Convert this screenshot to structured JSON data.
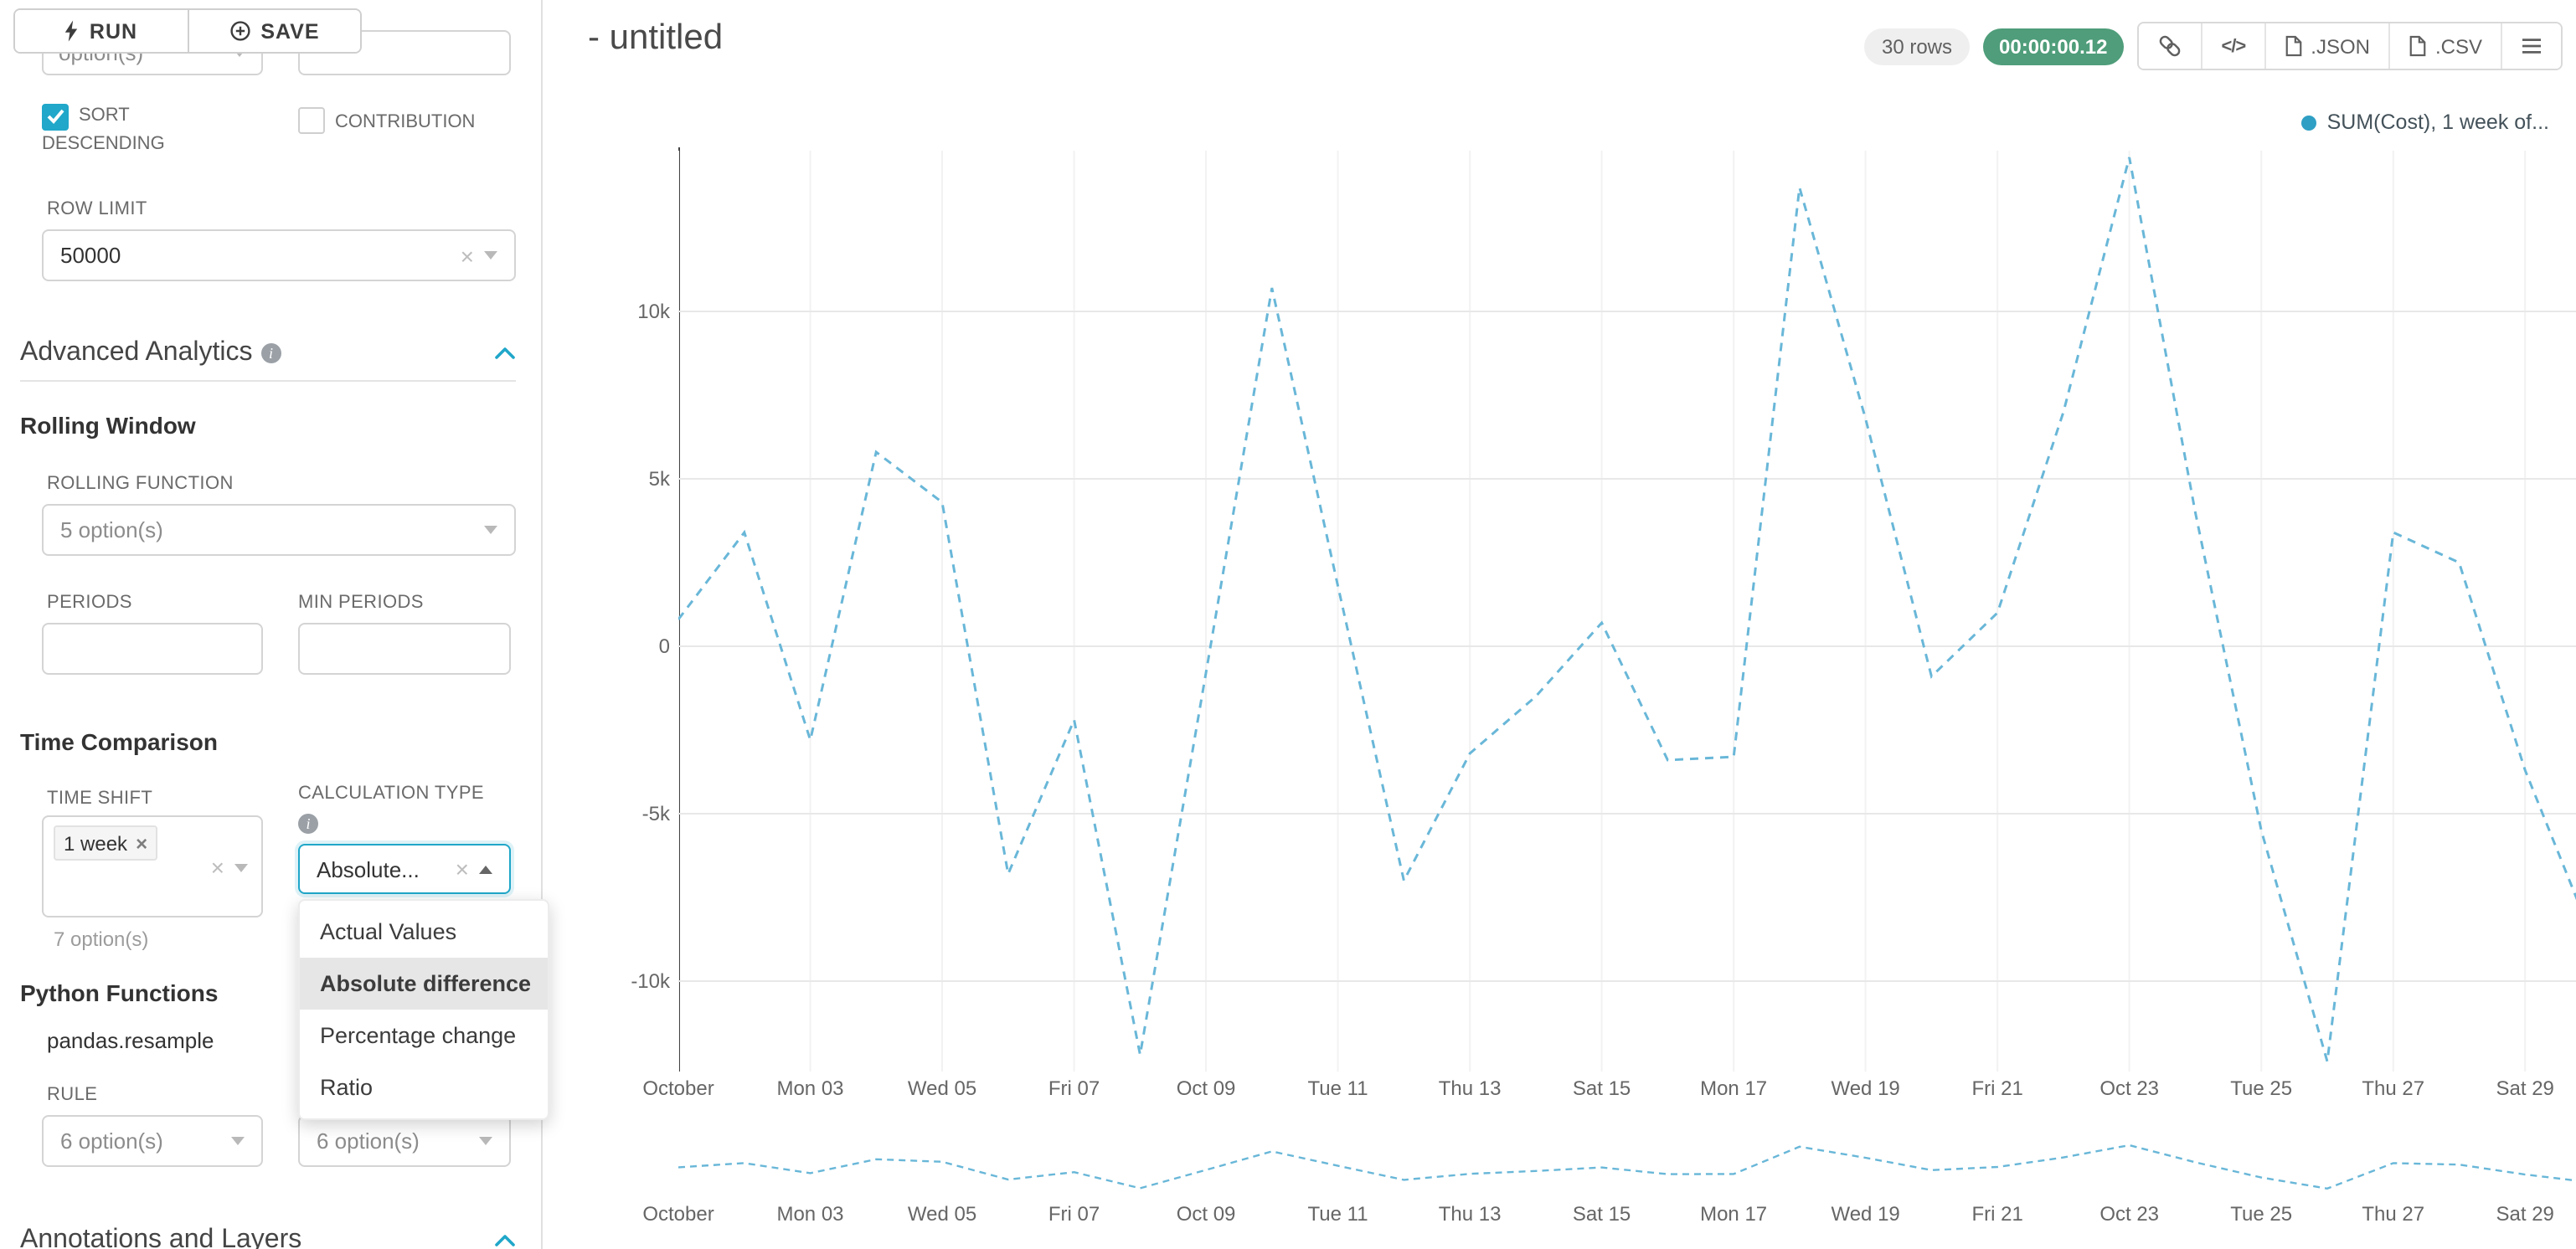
{
  "colors": {
    "accent": "#20a7c9",
    "line": "#69b7d8",
    "legend_dot": "#2f9fc4",
    "badge_green": "#4f9d7a",
    "grid": "#e8e8e8",
    "grid_vertical": "#f2f2f2"
  },
  "toolbar": {
    "run_label": "RUN",
    "save_label": "SAVE"
  },
  "icons": {
    "code_glyph": "</>"
  },
  "sidebar": {
    "partial_top": {
      "left_value": "option(s)"
    },
    "checkboxes": {
      "sort_descending": "SORT DESCENDING",
      "contribution": "CONTRIBUTION"
    },
    "row_limit": {
      "label": "ROW LIMIT",
      "value": "50000"
    },
    "advanced_analytics": {
      "title": "Advanced Analytics"
    },
    "rolling_window": {
      "title": "Rolling Window",
      "rolling_function_label": "ROLLING FUNCTION",
      "rolling_function_value": "5 option(s)",
      "periods_label": "PERIODS",
      "min_periods_label": "MIN PERIODS"
    },
    "time_comparison": {
      "title": "Time Comparison",
      "time_shift_label": "TIME SHIFT",
      "time_shift_tag": "1 week",
      "time_shift_hint": "7 option(s)",
      "calculation_type_label": "CALCULATION TYPE",
      "calculation_type_value": "Absolute...",
      "dropdown_options": [
        "Actual Values",
        "Absolute difference",
        "Percentage change",
        "Ratio"
      ],
      "selected_option": "Absolute difference"
    },
    "python_functions": {
      "title": "Python Functions",
      "subtitle": "pandas.resample",
      "rule_label": "RULE",
      "rule_value": "6 option(s)",
      "method_value": "6 option(s)"
    },
    "annotations": {
      "title": "Annotations and Layers"
    }
  },
  "header": {
    "title": "- untitled",
    "rows_badge": "30 rows",
    "timer_badge": "00:00:00.12",
    "json_label": ".JSON",
    "csv_label": ".CSV"
  },
  "chart_data": {
    "type": "line",
    "title": "",
    "legend": [
      "SUM(Cost), 1 week of..."
    ],
    "legend_position": "top-right",
    "line_style": "dashed",
    "grid": true,
    "n_points": 30,
    "label_every_n_points": 2,
    "x_labels": [
      "October",
      "Mon 03",
      "Wed 05",
      "Fri 07",
      "Oct 09",
      "Tue 11",
      "Thu 13",
      "Sat 15",
      "Mon 17",
      "Wed 19",
      "Fri 21",
      "Oct 23",
      "Tue 25",
      "Thu 27",
      "Sat 29"
    ],
    "series": [
      {
        "name": "SUM(Cost), 1 week of...",
        "values": [
          800,
          3400,
          -2800,
          5800,
          4300,
          -6800,
          -2200,
          -12200,
          -800,
          10700,
          1800,
          -7000,
          -3200,
          -1500,
          700,
          -3400,
          -3300,
          13700,
          6800,
          -900,
          1000,
          7000,
          14600,
          4000,
          -5500,
          -12400,
          3400,
          2500,
          -3700,
          -8600
        ]
      }
    ],
    "y_ticks": [
      {
        "label": "10k",
        "value": 10000
      },
      {
        "label": "5k",
        "value": 5000
      },
      {
        "label": "0",
        "value": 0
      },
      {
        "label": "-5k",
        "value": -5000
      },
      {
        "label": "-10k",
        "value": -10000
      }
    ],
    "ylim": [
      -12700,
      14800
    ],
    "mini_chart": true
  }
}
